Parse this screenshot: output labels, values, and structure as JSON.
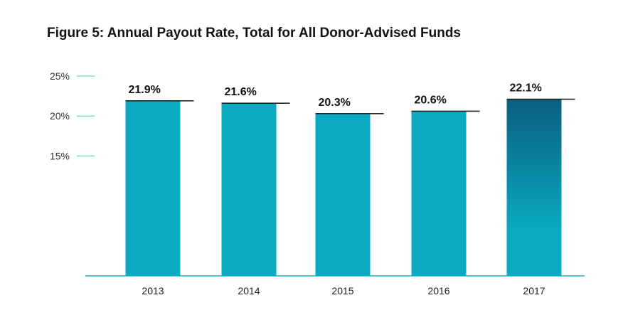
{
  "chart_data": {
    "type": "bar",
    "title": "Figure 5: Annual Payout Rate, Total for All Donor-Advised Funds",
    "xlabel": "",
    "ylabel": "",
    "categories": [
      "2013",
      "2014",
      "2015",
      "2016",
      "2017"
    ],
    "values": [
      21.9,
      21.6,
      20.3,
      20.6,
      22.1
    ],
    "value_labels": [
      "21.9%",
      "21.6%",
      "20.3%",
      "20.6%",
      "22.1%"
    ],
    "y_ticks": [
      {
        "value": 15,
        "label": "15%"
      },
      {
        "value": 20,
        "label": "20%"
      },
      {
        "value": 25,
        "label": "25%"
      }
    ],
    "ylim": [
      0,
      25
    ],
    "grid": false,
    "legend": "none",
    "colors": {
      "bar": "#0aabc2",
      "highlight_top": "#0a5e80",
      "highlight_bottom": "#0aabc2",
      "tick_mark": "#7ee0c8",
      "axis_line": "#19b3c8",
      "value_line": "#222222"
    }
  }
}
